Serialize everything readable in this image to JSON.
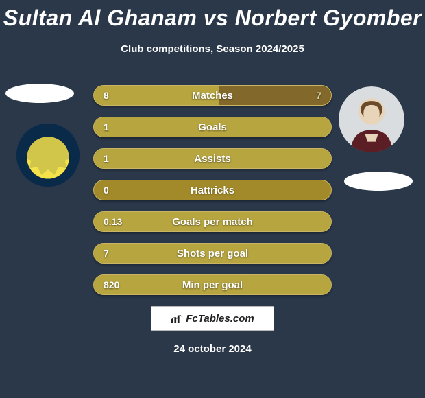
{
  "title": "Sultan Al Ghanam vs Norbert Gyomber",
  "subtitle": "Club competitions, Season 2024/2025",
  "date": "24 october 2024",
  "brand_text": "FcTables.com",
  "colors": {
    "background": "#2a384a",
    "bar_bg": "#a28a2a",
    "bar_border": "#c9b563",
    "left_fill": "#b7a540",
    "right_fill": "#82682a",
    "left_value_text": "#ffffff",
    "right_value_text": "#d7cfa8",
    "oval_bg": "#ffffff",
    "club_badge_bg": "#0a2a4a",
    "club_badge_inner": "#f5e24a",
    "player_top": "#e8d4b8",
    "player_shirt": "#5c1e25"
  },
  "avatars": {
    "left_oval_top": true,
    "left_club_badge": true,
    "right_player": true,
    "right_oval_bot": true
  },
  "bars": [
    {
      "label": "Matches",
      "left": "8",
      "right": "7",
      "left_pct": 53,
      "right_pct": 47,
      "show_right": true
    },
    {
      "label": "Goals",
      "left": "1",
      "right": "",
      "left_pct": 100,
      "right_pct": 0,
      "show_right": false
    },
    {
      "label": "Assists",
      "left": "1",
      "right": "",
      "left_pct": 100,
      "right_pct": 0,
      "show_right": false
    },
    {
      "label": "Hattricks",
      "left": "0",
      "right": "",
      "left_pct": 0,
      "right_pct": 0,
      "show_right": false
    },
    {
      "label": "Goals per match",
      "left": "0.13",
      "right": "",
      "left_pct": 100,
      "right_pct": 0,
      "show_right": false
    },
    {
      "label": "Shots per goal",
      "left": "7",
      "right": "",
      "left_pct": 100,
      "right_pct": 0,
      "show_right": false
    },
    {
      "label": "Min per goal",
      "left": "820",
      "right": "",
      "left_pct": 100,
      "right_pct": 0,
      "show_right": false
    }
  ]
}
